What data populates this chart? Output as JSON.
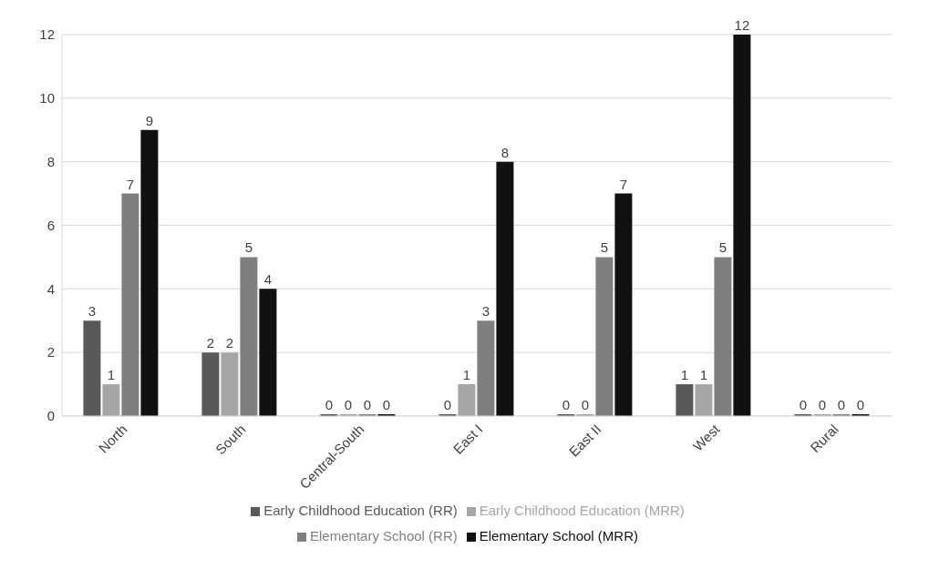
{
  "chart_data": {
    "type": "bar",
    "categories": [
      "North",
      "South",
      "Central-South",
      "East I",
      "East II",
      "West",
      "Rural"
    ],
    "series": [
      {
        "name": "Early Childhood Education (RR)",
        "color": "#595959",
        "values": [
          3,
          2,
          0,
          0,
          0,
          1,
          0
        ]
      },
      {
        "name": "Early Childhood Education (MRR)",
        "color": "#a6a6a6",
        "values": [
          1,
          2,
          0,
          1,
          0,
          1,
          0
        ]
      },
      {
        "name": "Elementary School (RR)",
        "color": "#7f7f7f",
        "values": [
          7,
          5,
          0,
          3,
          5,
          5,
          0
        ]
      },
      {
        "name": "Elementary School (MRR)",
        "color": "#111111",
        "values": [
          9,
          4,
          0,
          8,
          7,
          12,
          0
        ]
      }
    ],
    "ylim": [
      0,
      12
    ],
    "yticks": [
      0,
      2,
      4,
      6,
      8,
      10,
      12
    ],
    "grid": "y",
    "legend": "bottom",
    "data_labels": true
  }
}
